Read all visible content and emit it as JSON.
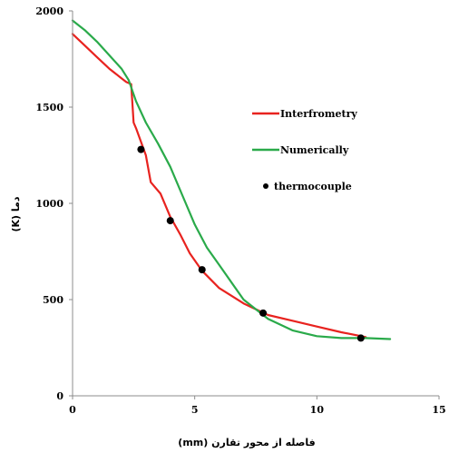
{
  "chart_data": {
    "type": "line",
    "xlabel": "فاصله از محور تقارن (mm)",
    "ylabel": "دما (K)",
    "xlim": [
      0,
      15
    ],
    "ylim": [
      0,
      2000
    ],
    "x_ticks": [
      "0",
      "5",
      "10",
      "15"
    ],
    "y_ticks": [
      "0",
      "500",
      "1000",
      "1500",
      "2000"
    ],
    "grid": false,
    "legend_position": "right",
    "series": [
      {
        "name": "Interfrometry",
        "style": "line",
        "color": "#e8231f",
        "x": [
          0,
          0.5,
          1,
          1.5,
          2,
          2.2,
          2.4,
          2.5,
          2.6,
          3.0,
          3.2,
          3.6,
          4.0,
          4.4,
          4.8,
          5.3,
          6.0,
          7.0,
          8.0,
          9.0,
          10.0,
          11.0,
          12.0
        ],
        "y": [
          1880,
          1820,
          1760,
          1700,
          1650,
          1630,
          1620,
          1420,
          1390,
          1250,
          1110,
          1050,
          930,
          840,
          740,
          650,
          560,
          480,
          420,
          390,
          360,
          330,
          305
        ]
      },
      {
        "name": "Numerically",
        "style": "line",
        "color": "#2aaa4a",
        "x": [
          0,
          0.5,
          1,
          1.5,
          2,
          2.3,
          2.6,
          3.0,
          3.5,
          4.0,
          4.5,
          5.0,
          5.5,
          6.0,
          7.0,
          8.0,
          9.0,
          10.0,
          11.0,
          12.0,
          13.0
        ],
        "y": [
          1950,
          1900,
          1840,
          1770,
          1700,
          1640,
          1530,
          1420,
          1310,
          1190,
          1040,
          890,
          770,
          680,
          500,
          400,
          340,
          310,
          300,
          300,
          295
        ]
      },
      {
        "name": "thermocouple",
        "style": "marker",
        "color": "#000000",
        "x": [
          2.8,
          4.0,
          5.3,
          7.8,
          11.8
        ],
        "y": [
          1280,
          910,
          655,
          430,
          300
        ]
      }
    ]
  }
}
